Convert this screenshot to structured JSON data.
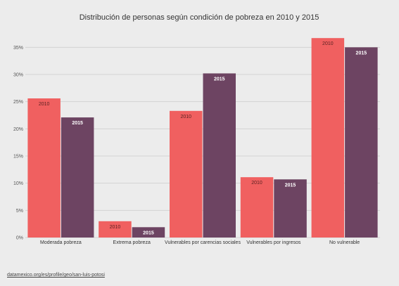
{
  "chart_data": {
    "type": "bar",
    "title": "Distribución de personas según condición de pobreza en 2010 y 2015",
    "categories": [
      "Moderada pobreza",
      "Extrema pobreza",
      "Vulnerables por carencias sociales",
      "Vulnerables por ingresos",
      "No vulnerable"
    ],
    "series": [
      {
        "name": "2010",
        "values": [
          25.6,
          3.0,
          23.3,
          11.1,
          36.7
        ],
        "color": "#f06060"
      },
      {
        "name": "2015",
        "values": [
          22.1,
          1.9,
          30.2,
          10.7,
          35.0
        ],
        "color": "#6d4462"
      }
    ],
    "ylim": [
      0,
      37.5
    ],
    "yticks": [
      0,
      5,
      10,
      15,
      20,
      25,
      30,
      35
    ],
    "ytick_labels": [
      "0%",
      "5%",
      "10%",
      "15%",
      "20%",
      "25%",
      "30%",
      "35%"
    ],
    "grid": true,
    "xlabel": "",
    "ylabel": ""
  },
  "source": {
    "label": "datamexico.org/es/profile/geo/san-luis-potosi"
  },
  "colors": {
    "background": "#ececec",
    "label_on_light_bar": "#5a2222",
    "label_on_dark_bar": "#ffffff"
  }
}
